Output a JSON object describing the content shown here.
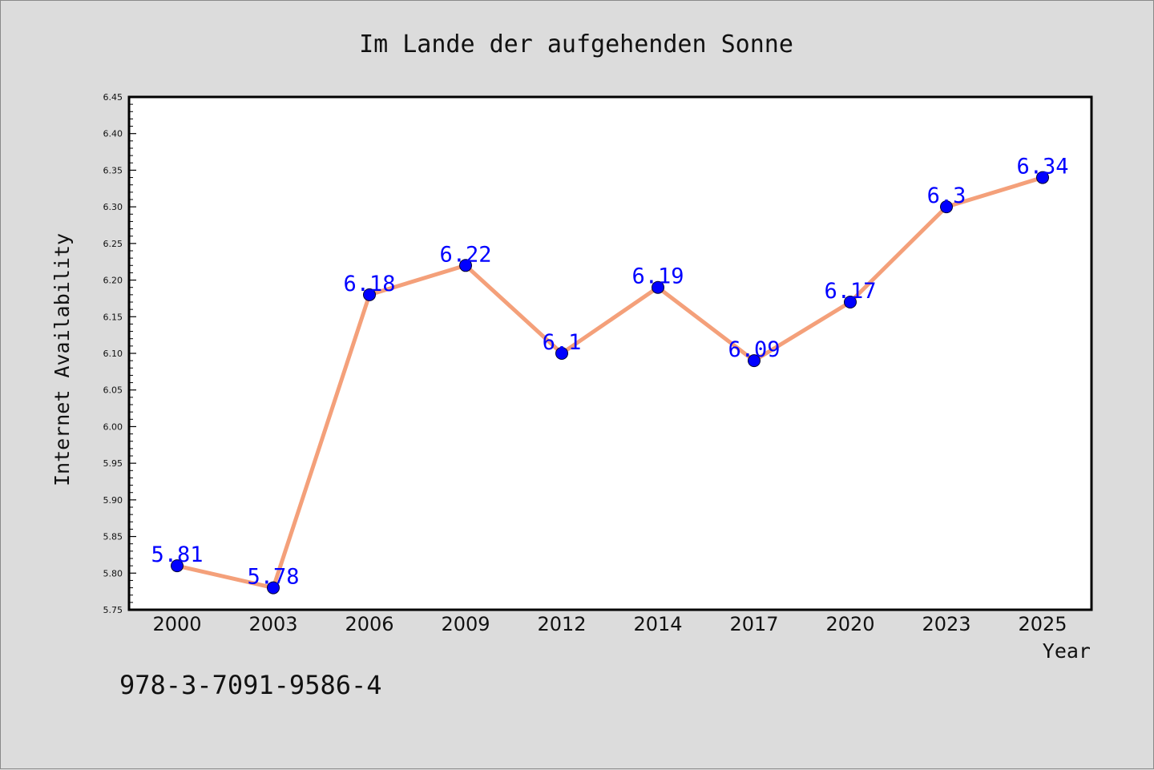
{
  "chart_data": {
    "type": "line",
    "title": "Im Lande der aufgehenden Sonne",
    "xlabel": "Year",
    "ylabel": "Internet Availability",
    "categories": [
      "2000",
      "2003",
      "2006",
      "2009",
      "2012",
      "2014",
      "2017",
      "2020",
      "2023",
      "2025"
    ],
    "series": [
      {
        "values": [
          5.81,
          5.78,
          6.18,
          6.22,
          6.1,
          6.19,
          6.09,
          6.17,
          6.3,
          6.34
        ],
        "data_labels": [
          "5.81",
          "5.78",
          "6.18",
          "6.22",
          "6.1",
          "6.19",
          "6.09",
          "6.17",
          "6.3",
          "6.34"
        ]
      }
    ],
    "ylim": [
      5.75,
      6.45
    ],
    "yticks": [
      "5.75",
      "5.80",
      "5.85",
      "5.90",
      "5.95",
      "6.00",
      "6.05",
      "6.10",
      "6.15",
      "6.20",
      "6.25",
      "6.30",
      "6.35",
      "6.40",
      "6.45"
    ],
    "grid": false,
    "legend": "none",
    "colors": {
      "line": "#f4a07a",
      "marker": "#0000ff",
      "data_label": "#0000ff",
      "plot_background": "#ffffff",
      "figure_background": "#dcdcdc"
    }
  },
  "footer": {
    "code": "978-3-7091-9586-4"
  }
}
